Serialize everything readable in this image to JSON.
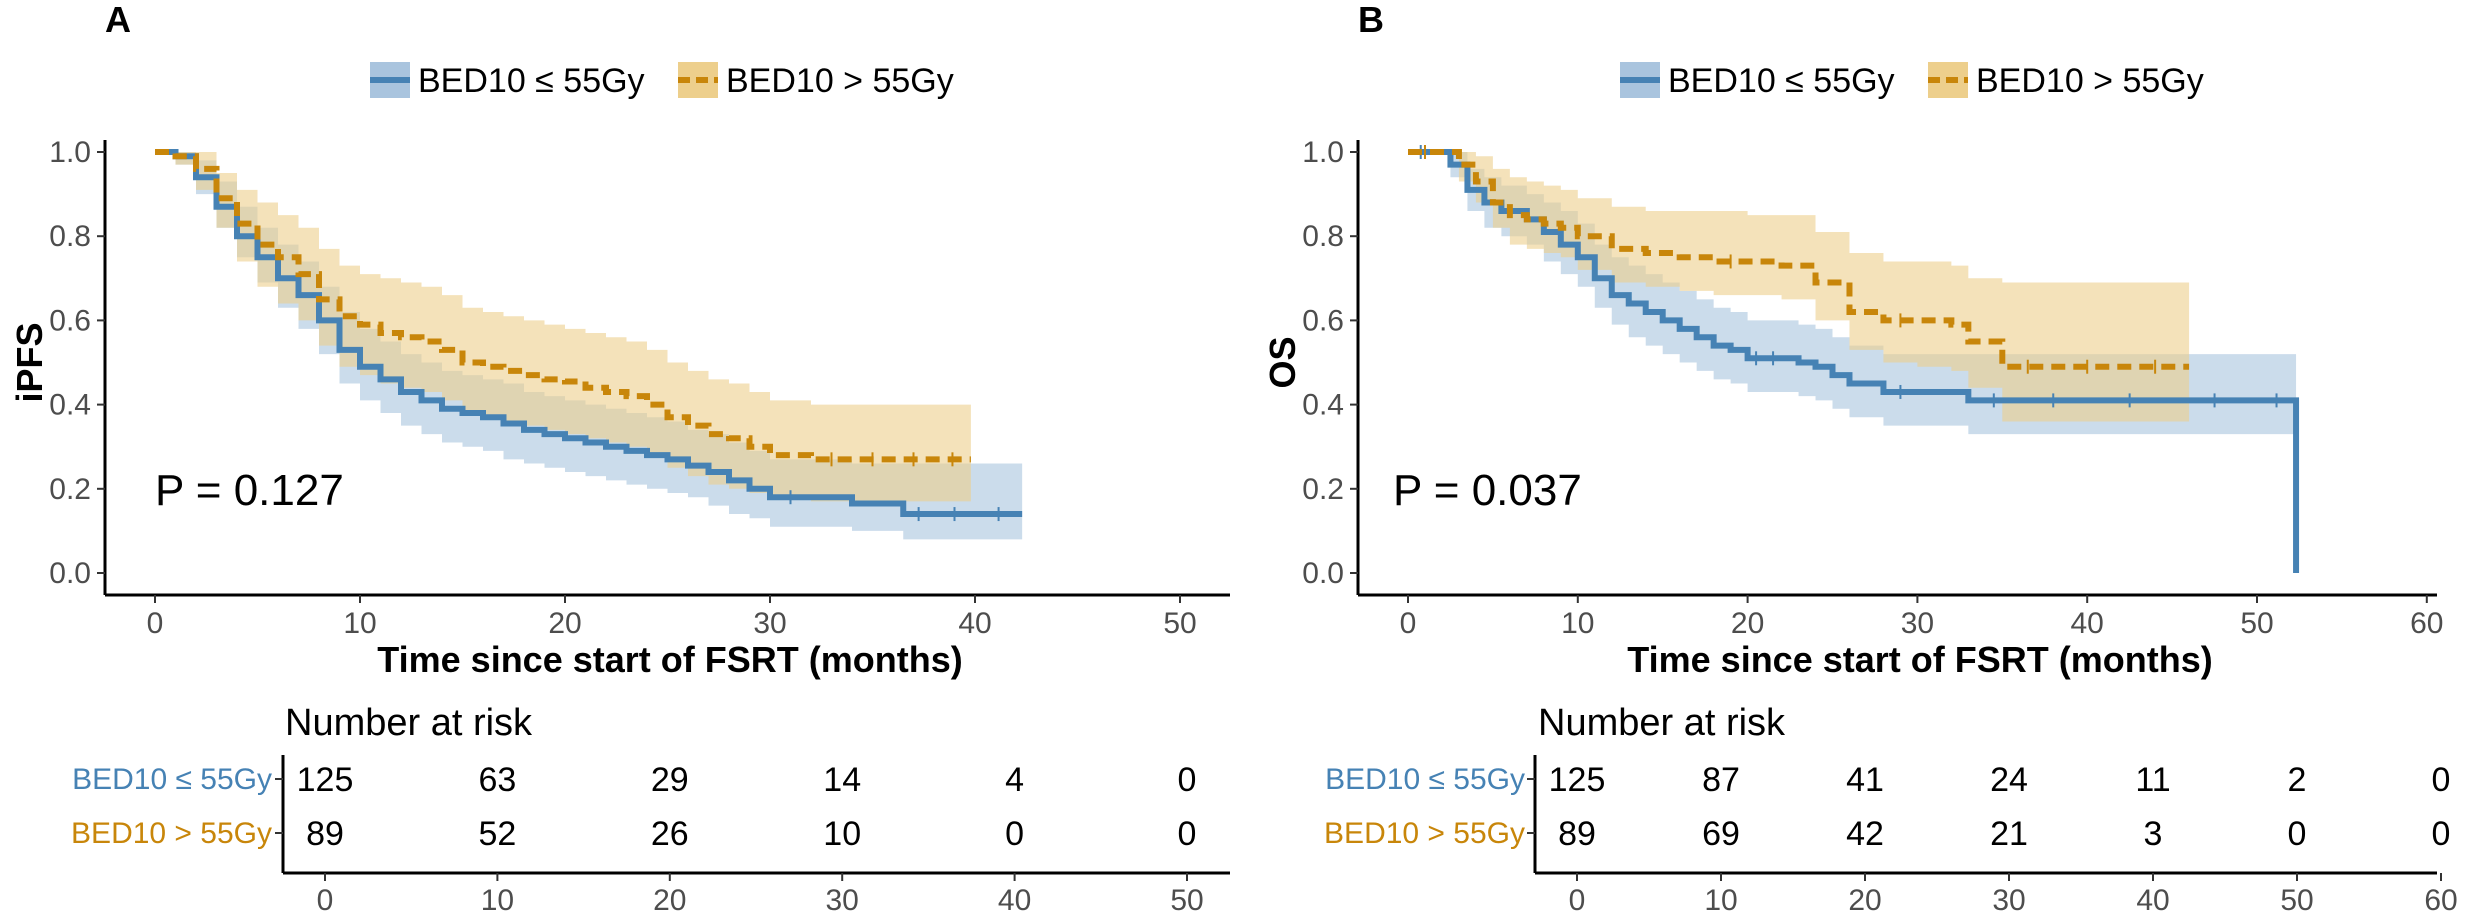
{
  "colors": {
    "blue": "#4682B4",
    "gold": "#C8860A",
    "blue_fill": "#A9C4DE",
    "gold_fill": "#EDCF8C"
  },
  "chart_data": [
    {
      "panel": "A",
      "type": "line",
      "subtype": "kaplan-meier",
      "ylabel": "iPFS",
      "xlabel": "Time since start of FSRT (months)",
      "x_ticks": [
        "0",
        "10",
        "20",
        "30",
        "40",
        "50"
      ],
      "y_ticks": [
        "0.0",
        "0.2",
        "0.4",
        "0.6",
        "0.8",
        "1.0"
      ],
      "xlim": [
        0,
        50
      ],
      "ylim": [
        0,
        1
      ],
      "p_value": "P = 0.127",
      "legend": [
        "BED10 ≤ 55Gy",
        "BED10 > 55Gy"
      ],
      "series": [
        {
          "name": "BED10 ≤ 55Gy",
          "color_key": "blue",
          "x": [
            0,
            1,
            2,
            3,
            4,
            5,
            6,
            7,
            8,
            9,
            10,
            11,
            12,
            13,
            14,
            15,
            16,
            17,
            18,
            19,
            20,
            21,
            22,
            23,
            24,
            25,
            26,
            27,
            28,
            29,
            30,
            32,
            34,
            36.5,
            38,
            40,
            42.3
          ],
          "y": [
            1.0,
            0.99,
            0.94,
            0.87,
            0.8,
            0.75,
            0.7,
            0.66,
            0.6,
            0.53,
            0.49,
            0.46,
            0.43,
            0.41,
            0.39,
            0.38,
            0.37,
            0.355,
            0.34,
            0.33,
            0.32,
            0.31,
            0.3,
            0.29,
            0.28,
            0.27,
            0.255,
            0.24,
            0.22,
            0.2,
            0.18,
            0.18,
            0.165,
            0.14,
            0.14,
            0.14,
            0.14
          ],
          "lower": [
            1.0,
            0.97,
            0.9,
            0.82,
            0.75,
            0.69,
            0.63,
            0.58,
            0.52,
            0.45,
            0.41,
            0.38,
            0.35,
            0.33,
            0.31,
            0.3,
            0.29,
            0.27,
            0.26,
            0.25,
            0.24,
            0.23,
            0.22,
            0.21,
            0.2,
            0.19,
            0.18,
            0.16,
            0.14,
            0.13,
            0.11,
            0.11,
            0.1,
            0.08,
            0.08,
            0.08,
            0.08
          ],
          "upper": [
            1.0,
            1.0,
            0.98,
            0.93,
            0.87,
            0.82,
            0.78,
            0.74,
            0.68,
            0.62,
            0.58,
            0.55,
            0.52,
            0.5,
            0.48,
            0.47,
            0.46,
            0.45,
            0.43,
            0.42,
            0.41,
            0.4,
            0.39,
            0.38,
            0.37,
            0.36,
            0.34,
            0.33,
            0.31,
            0.29,
            0.27,
            0.27,
            0.26,
            0.26,
            0.26,
            0.26,
            0.26
          ]
        },
        {
          "name": "BED10 > 55Gy",
          "color_key": "gold",
          "x": [
            0,
            1,
            2,
            3,
            4,
            5,
            6,
            7,
            8,
            9,
            10,
            11,
            12,
            13,
            14,
            15,
            16,
            17,
            18,
            19,
            20,
            21,
            22,
            23,
            24,
            25,
            26,
            27,
            28,
            29,
            30,
            32,
            34,
            36,
            38,
            39.8
          ],
          "y": [
            1.0,
            0.99,
            0.96,
            0.89,
            0.83,
            0.78,
            0.75,
            0.71,
            0.65,
            0.61,
            0.59,
            0.57,
            0.56,
            0.55,
            0.53,
            0.5,
            0.49,
            0.48,
            0.47,
            0.46,
            0.455,
            0.44,
            0.43,
            0.42,
            0.4,
            0.37,
            0.35,
            0.33,
            0.32,
            0.3,
            0.28,
            0.27,
            0.27,
            0.27,
            0.27,
            0.27
          ],
          "lower": [
            1.0,
            0.97,
            0.91,
            0.82,
            0.74,
            0.68,
            0.64,
            0.6,
            0.54,
            0.49,
            0.47,
            0.45,
            0.44,
            0.43,
            0.41,
            0.38,
            0.37,
            0.36,
            0.35,
            0.34,
            0.33,
            0.32,
            0.31,
            0.3,
            0.28,
            0.25,
            0.23,
            0.21,
            0.2,
            0.19,
            0.18,
            0.17,
            0.17,
            0.17,
            0.17,
            0.17
          ],
          "upper": [
            1.0,
            1.0,
            1.0,
            0.95,
            0.91,
            0.88,
            0.85,
            0.82,
            0.77,
            0.73,
            0.71,
            0.7,
            0.69,
            0.68,
            0.66,
            0.63,
            0.62,
            0.61,
            0.6,
            0.59,
            0.58,
            0.57,
            0.56,
            0.55,
            0.53,
            0.5,
            0.48,
            0.46,
            0.45,
            0.43,
            0.41,
            0.4,
            0.4,
            0.4,
            0.4,
            0.4
          ]
        }
      ],
      "risk_table": {
        "title": "Number at risk",
        "rows": [
          {
            "label": "BED10 ≤ 55Gy",
            "color_key": "blue",
            "values": [
              "125",
              "63",
              "29",
              "14",
              "4",
              "0"
            ]
          },
          {
            "label": "BED10 > 55Gy",
            "color_key": "gold",
            "values": [
              "89",
              "52",
              "26",
              "10",
              "0",
              "0"
            ]
          }
        ],
        "x_ticks": [
          "0",
          "10",
          "20",
          "30",
          "40",
          "50"
        ]
      }
    },
    {
      "panel": "B",
      "type": "line",
      "subtype": "kaplan-meier",
      "ylabel": "OS",
      "xlabel": "Time since start of FSRT (months)",
      "x_ticks": [
        "0",
        "10",
        "20",
        "30",
        "40",
        "50",
        "60"
      ],
      "y_ticks": [
        "0.0",
        "0.2",
        "0.4",
        "0.6",
        "0.8",
        "1.0"
      ],
      "xlim": [
        0,
        60
      ],
      "ylim": [
        0,
        1
      ],
      "p_value": "P = 0.037",
      "legend": [
        "BED10 ≤ 55Gy",
        "BED10 > 55Gy"
      ],
      "series": [
        {
          "name": "BED10 ≤ 55Gy",
          "color_key": "blue",
          "x": [
            0,
            1.5,
            2.5,
            3.5,
            4.5,
            5.5,
            7,
            8,
            9,
            10,
            11,
            12,
            13,
            14,
            15,
            16,
            17,
            18,
            19,
            20,
            21,
            22,
            23,
            24,
            25,
            26,
            28,
            30,
            33,
            36,
            40,
            45,
            50,
            52.3,
            52.3
          ],
          "y": [
            1.0,
            1.0,
            0.97,
            0.91,
            0.88,
            0.86,
            0.84,
            0.81,
            0.78,
            0.75,
            0.7,
            0.66,
            0.64,
            0.62,
            0.6,
            0.58,
            0.56,
            0.54,
            0.53,
            0.51,
            0.51,
            0.51,
            0.5,
            0.49,
            0.47,
            0.45,
            0.43,
            0.43,
            0.41,
            0.41,
            0.41,
            0.41,
            0.41,
            0.41,
            0.0
          ],
          "lower": [
            1.0,
            1.0,
            0.94,
            0.86,
            0.82,
            0.8,
            0.78,
            0.74,
            0.71,
            0.68,
            0.63,
            0.59,
            0.56,
            0.54,
            0.52,
            0.5,
            0.48,
            0.46,
            0.45,
            0.43,
            0.43,
            0.43,
            0.42,
            0.41,
            0.39,
            0.37,
            0.35,
            0.35,
            0.33,
            0.33,
            0.33,
            0.33,
            0.33,
            0.33,
            0.33
          ],
          "upper": [
            1.0,
            1.0,
            1.0,
            0.96,
            0.94,
            0.92,
            0.9,
            0.88,
            0.86,
            0.83,
            0.78,
            0.75,
            0.73,
            0.71,
            0.69,
            0.67,
            0.65,
            0.63,
            0.62,
            0.6,
            0.6,
            0.6,
            0.59,
            0.58,
            0.56,
            0.54,
            0.52,
            0.52,
            0.52,
            0.52,
            0.52,
            0.52,
            0.52,
            0.52,
            0.52
          ]
        },
        {
          "name": "BED10 > 55Gy",
          "color_key": "gold",
          "x": [
            0,
            2,
            3,
            4,
            5,
            6,
            7,
            8,
            9,
            10,
            12,
            14,
            16,
            18,
            20,
            22,
            24,
            26,
            28,
            30,
            32,
            33,
            35,
            38,
            42,
            46
          ],
          "y": [
            1.0,
            1.0,
            0.97,
            0.93,
            0.88,
            0.85,
            0.84,
            0.83,
            0.82,
            0.8,
            0.77,
            0.76,
            0.75,
            0.74,
            0.74,
            0.73,
            0.69,
            0.62,
            0.6,
            0.6,
            0.59,
            0.55,
            0.49,
            0.49,
            0.49,
            0.49
          ],
          "lower": [
            1.0,
            1.0,
            0.93,
            0.88,
            0.82,
            0.78,
            0.77,
            0.76,
            0.75,
            0.72,
            0.69,
            0.68,
            0.67,
            0.66,
            0.66,
            0.65,
            0.6,
            0.53,
            0.5,
            0.49,
            0.48,
            0.44,
            0.36,
            0.36,
            0.36,
            0.36
          ],
          "upper": [
            1.0,
            1.0,
            1.0,
            0.99,
            0.96,
            0.94,
            0.93,
            0.92,
            0.91,
            0.89,
            0.87,
            0.86,
            0.86,
            0.86,
            0.85,
            0.85,
            0.81,
            0.76,
            0.74,
            0.74,
            0.73,
            0.7,
            0.69,
            0.69,
            0.69,
            0.69
          ]
        }
      ],
      "risk_table": {
        "title": "Number at risk",
        "rows": [
          {
            "label": "BED10 ≤ 55Gy",
            "color_key": "blue",
            "values": [
              "125",
              "87",
              "41",
              "24",
              "11",
              "2",
              "0"
            ]
          },
          {
            "label": "BED10 > 55Gy",
            "color_key": "gold",
            "values": [
              "89",
              "69",
              "42",
              "21",
              "3",
              "0",
              "0"
            ]
          }
        ],
        "x_ticks": [
          "0",
          "10",
          "20",
          "30",
          "40",
          "50",
          "60"
        ]
      }
    }
  ]
}
